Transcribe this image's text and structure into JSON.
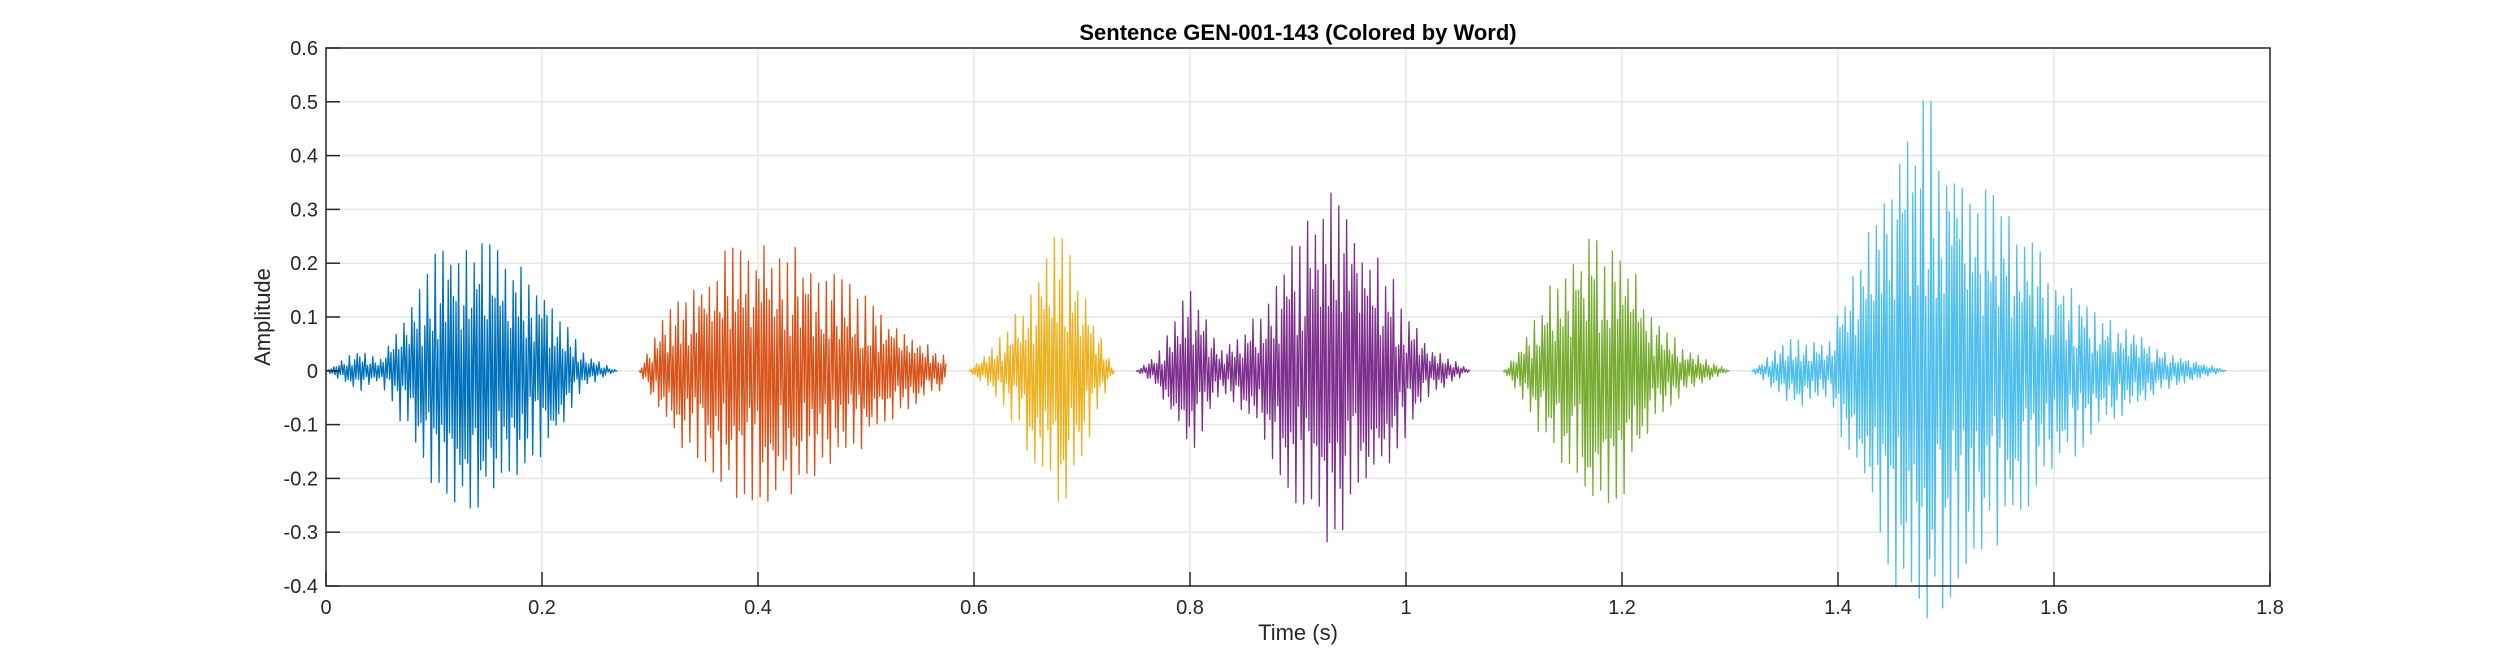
{
  "chart_data": {
    "type": "line",
    "title": "Sentence GEN-001-143 (Colored by Word)",
    "xlabel": "Time (s)",
    "ylabel": "Amplitude",
    "xlim": [
      0,
      1.8
    ],
    "ylim": [
      -0.4,
      0.6
    ],
    "xticks": [
      "0",
      "0.2",
      "0.4",
      "0.6",
      "0.8",
      "1",
      "1.2",
      "1.4",
      "1.6",
      "1.8"
    ],
    "yticks": [
      "-0.4",
      "-0.3",
      "-0.2",
      "-0.1",
      "0",
      "0.1",
      "0.2",
      "0.3",
      "0.4",
      "0.5",
      "0.6"
    ],
    "grid": true,
    "series": [
      {
        "color": "#0072BD",
        "x": [
          0.0,
          0.03,
          0.05,
          0.075,
          0.1,
          0.13,
          0.15,
          0.17,
          0.2,
          0.22,
          0.24,
          0.27
        ],
        "amplitude": [
          0.0,
          0.04,
          0.02,
          0.12,
          0.22,
          0.27,
          0.26,
          0.22,
          0.17,
          0.1,
          0.03,
          0.0
        ]
      },
      {
        "color": "#D95319",
        "x": [
          0.29,
          0.31,
          0.33,
          0.36,
          0.39,
          0.42,
          0.45,
          0.48,
          0.51,
          0.54,
          0.575
        ],
        "amplitude": [
          0.0,
          0.09,
          0.15,
          0.21,
          0.25,
          0.24,
          0.22,
          0.18,
          0.12,
          0.07,
          0.03
        ]
      },
      {
        "color": "#EDB120",
        "x": [
          0.595,
          0.62,
          0.645,
          0.665,
          0.68,
          0.7,
          0.73
        ],
        "amplitude": [
          0.0,
          0.05,
          0.13,
          0.22,
          0.28,
          0.16,
          0.0
        ]
      },
      {
        "color": "#7E2F8E",
        "x": [
          0.75,
          0.77,
          0.8,
          0.83,
          0.86,
          0.9,
          0.93,
          0.96,
          0.99,
          1.02,
          1.06
        ],
        "amplitude": [
          0.0,
          0.03,
          0.16,
          0.04,
          0.1,
          0.26,
          0.37,
          0.26,
          0.17,
          0.05,
          0.0
        ]
      },
      {
        "color": "#77AC30",
        "x": [
          1.09,
          1.11,
          1.14,
          1.17,
          1.2,
          1.23,
          1.26,
          1.3
        ],
        "amplitude": [
          0.0,
          0.06,
          0.19,
          0.26,
          0.24,
          0.1,
          0.04,
          0.0
        ]
      },
      {
        "color": "#4DBEEE",
        "x": [
          1.32,
          1.36,
          1.39,
          1.42,
          1.45,
          1.48,
          1.51,
          1.55,
          1.6,
          1.65,
          1.7,
          1.76
        ],
        "amplitude": [
          0.0,
          0.07,
          0.05,
          0.22,
          0.4,
          0.53,
          0.42,
          0.32,
          0.2,
          0.1,
          0.04,
          0.0
        ]
      }
    ]
  }
}
